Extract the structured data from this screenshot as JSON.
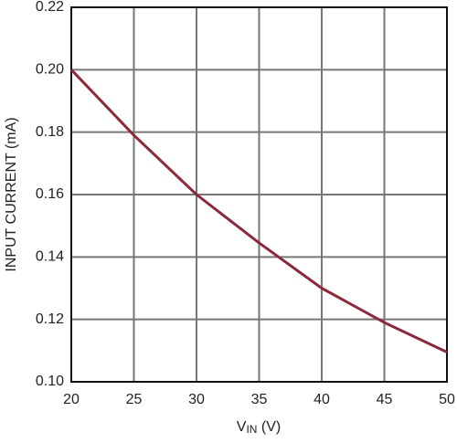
{
  "chart_data": {
    "type": "line",
    "x_label": {
      "main": "V",
      "sub": "IN",
      "unit": " (V)"
    },
    "y_label": "INPUT CURRENT (mA)",
    "x": [
      20,
      25,
      30,
      35,
      40,
      45,
      50
    ],
    "series": [
      {
        "color": "#8c2a3c",
        "values": [
          0.2,
          0.179,
          0.16,
          0.1445,
          0.13,
          0.119,
          0.1095
        ]
      }
    ],
    "xlim": [
      20,
      50
    ],
    "xticks": [
      20,
      25,
      30,
      35,
      40,
      45,
      50
    ],
    "ylim": [
      0.1,
      0.22
    ],
    "yticks": [
      {
        "value": 0.1,
        "label": "0.10"
      },
      0.12,
      0.14,
      0.16,
      0.18,
      {
        "value": 0.2,
        "label": "0.20"
      },
      0.22
    ],
    "grid": true
  }
}
